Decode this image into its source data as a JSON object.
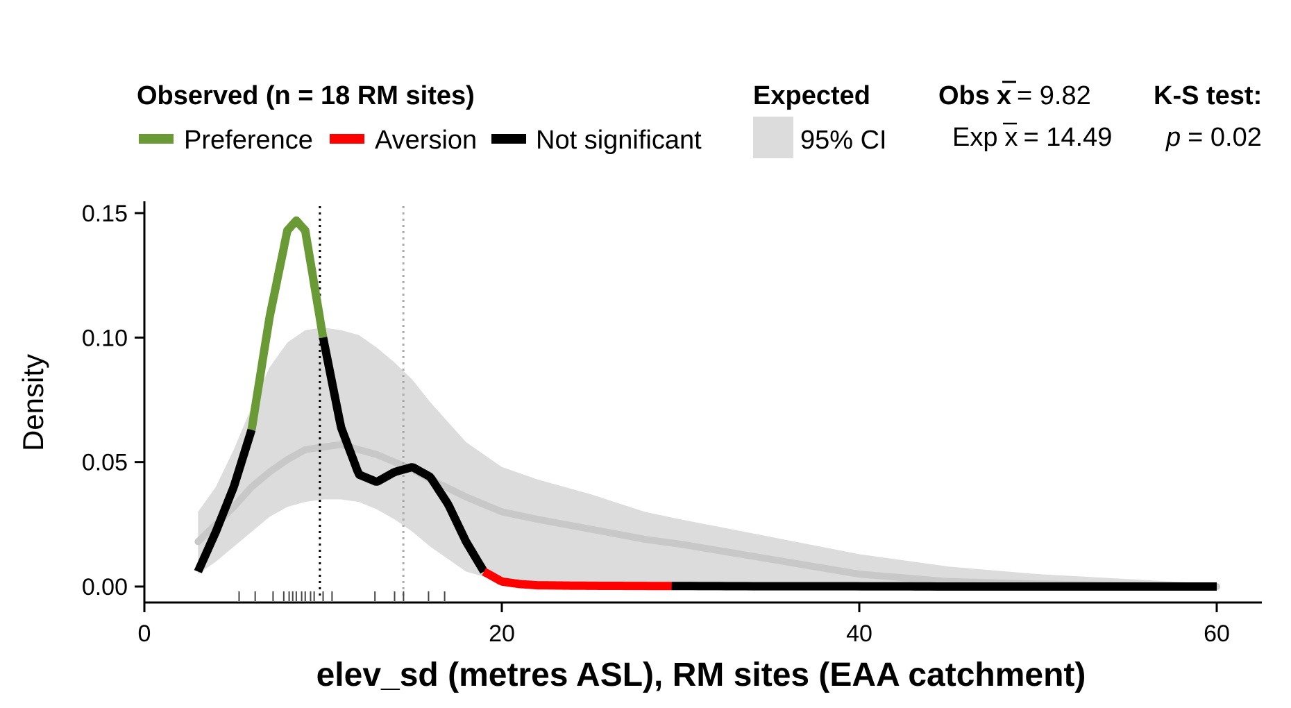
{
  "chart_data": {
    "type": "line",
    "title": "",
    "xlabel": "elev_sd (metres ASL), RM sites (EAA catchment)",
    "ylabel": "Density",
    "xlim": [
      0,
      62
    ],
    "ylim": [
      0,
      0.155
    ],
    "x_ticks": [
      0,
      20,
      40,
      60
    ],
    "x_tick_labels": [
      "0",
      "20",
      "40",
      "60"
    ],
    "y_ticks": [
      0,
      0.05,
      0.1,
      0.15
    ],
    "y_tick_labels": [
      "0.00",
      "0.05",
      "0.10",
      "0.15"
    ],
    "grid": false,
    "legend": {
      "observed_title": "Observed (n = 18 RM sites)",
      "items": [
        {
          "label": "Preference",
          "color": "#6a9a35"
        },
        {
          "label": "Aversion",
          "color": "#ff0000"
        },
        {
          "label": "Not significant",
          "color": "#000000"
        }
      ],
      "expected_title": "Expected",
      "ci_label": "95% CI",
      "ci_color": "#dcdcdc",
      "obs_mean_label": "Obs",
      "obs_mean_value": "= 9.82",
      "exp_mean_label": "Exp",
      "exp_mean_value": "= 14.49",
      "ks_title": "K-S test:",
      "p_symbol": "p",
      "p_value": "= 0.02"
    },
    "observed": {
      "x": [
        3,
        4,
        5,
        6,
        7,
        8,
        8.5,
        9,
        10,
        11,
        12,
        13,
        14,
        15,
        16,
        17,
        18,
        19,
        20,
        21,
        22,
        25,
        30,
        35,
        40,
        45,
        50,
        55,
        60
      ],
      "y": [
        0.006,
        0.022,
        0.04,
        0.063,
        0.108,
        0.143,
        0.147,
        0.143,
        0.1,
        0.064,
        0.045,
        0.042,
        0.046,
        0.048,
        0.044,
        0.033,
        0.018,
        0.006,
        0.002,
        0.001,
        0.0005,
        0.0003,
        0.0002,
        0.0001,
        0.0001,
        0.0,
        0.0,
        0.0,
        0.0
      ],
      "segments": [
        {
          "from": 3,
          "to": 6,
          "significance": "Not significant",
          "color": "#000000"
        },
        {
          "from": 6,
          "to": 10,
          "significance": "Preference",
          "color": "#6a9a35"
        },
        {
          "from": 10,
          "to": 19,
          "significance": "Not significant",
          "color": "#000000"
        },
        {
          "from": 19,
          "to": 29.5,
          "significance": "Aversion",
          "color": "#ff0000"
        },
        {
          "from": 29.5,
          "to": 60,
          "significance": "Not significant",
          "color": "#000000"
        }
      ]
    },
    "expected": {
      "x": [
        3,
        4,
        5,
        6,
        7,
        8,
        9,
        10,
        11,
        12,
        13,
        14,
        15,
        16,
        18,
        20,
        22,
        25,
        28,
        30,
        35,
        40,
        45,
        50,
        55,
        60
      ],
      "mean": [
        0.018,
        0.025,
        0.032,
        0.04,
        0.046,
        0.051,
        0.055,
        0.056,
        0.057,
        0.055,
        0.053,
        0.05,
        0.047,
        0.043,
        0.036,
        0.03,
        0.027,
        0.023,
        0.019,
        0.017,
        0.011,
        0.005,
        0.002,
        0.001,
        0.0005,
        0.0
      ],
      "lower": [
        0.005,
        0.01,
        0.016,
        0.022,
        0.028,
        0.032,
        0.034,
        0.035,
        0.035,
        0.034,
        0.031,
        0.027,
        0.022,
        0.016,
        0.006,
        0.002,
        0.001,
        0.0005,
        0.0003,
        0.0002,
        0.0001,
        0.0,
        0.0,
        0.0,
        0.0,
        0.0
      ],
      "upper": [
        0.03,
        0.04,
        0.055,
        0.072,
        0.088,
        0.098,
        0.103,
        0.104,
        0.103,
        0.101,
        0.096,
        0.09,
        0.083,
        0.074,
        0.058,
        0.048,
        0.043,
        0.037,
        0.03,
        0.027,
        0.02,
        0.013,
        0.008,
        0.005,
        0.003,
        0.001
      ]
    },
    "vlines": [
      {
        "x": 9.82,
        "style": "dotted",
        "color": "#000000",
        "role": "observed mean"
      },
      {
        "x": 14.49,
        "style": "dotted",
        "color": "#aaaaaa",
        "role": "expected mean"
      }
    ],
    "rug": [
      5.3,
      6.2,
      7.2,
      7.8,
      8.1,
      8.3,
      8.5,
      8.8,
      9.0,
      9.5,
      10.0,
      10.5,
      12.9,
      14.0,
      14.5,
      15.9,
      16.8,
      9.3
    ]
  }
}
